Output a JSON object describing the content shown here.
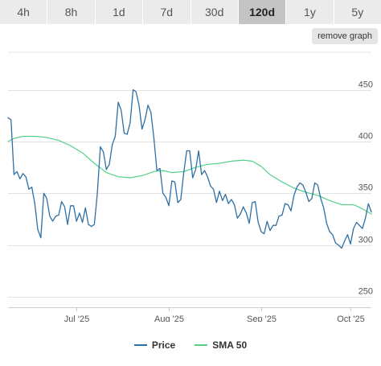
{
  "tabs": [
    {
      "label": "4h",
      "active": false
    },
    {
      "label": "8h",
      "active": false
    },
    {
      "label": "1d",
      "active": false
    },
    {
      "label": "7d",
      "active": false
    },
    {
      "label": "30d",
      "active": false
    },
    {
      "label": "120d",
      "active": true
    },
    {
      "label": "1y",
      "active": false
    },
    {
      "label": "5y",
      "active": false
    }
  ],
  "remove_graph_label": "remove graph",
  "colors": {
    "price": "#2f6fa3",
    "sma": "#54d08a",
    "grid": "#e3e3e3",
    "axis_text": "#555555"
  },
  "chart_data": {
    "type": "line",
    "title": "",
    "xlabel": "",
    "ylabel": "",
    "ylim": [
      240,
      490
    ],
    "xlim": [
      "2025-06-08",
      "2025-10-08"
    ],
    "yticks": [
      250,
      300,
      350,
      400,
      450
    ],
    "xticks": [
      {
        "date": "2025-07-01",
        "label": "Jul '25"
      },
      {
        "date": "2025-08-01",
        "label": "Aug '25"
      },
      {
        "date": "2025-09-01",
        "label": "Sep '25"
      },
      {
        "date": "2025-10-01",
        "label": "Oct '25"
      }
    ],
    "grid": true,
    "legend_position": "bottom",
    "series": [
      {
        "name": "Price",
        "color": "#2f6fa3",
        "points": [
          [
            "2025-06-08",
            423
          ],
          [
            "2025-06-09",
            421
          ],
          [
            "2025-06-10",
            368
          ],
          [
            "2025-06-11",
            371
          ],
          [
            "2025-06-12",
            364
          ],
          [
            "2025-06-13",
            369
          ],
          [
            "2025-06-14",
            366
          ],
          [
            "2025-06-15",
            354
          ],
          [
            "2025-06-16",
            356
          ],
          [
            "2025-06-17",
            340
          ],
          [
            "2025-06-18",
            315
          ],
          [
            "2025-06-19",
            307
          ],
          [
            "2025-06-20",
            350
          ],
          [
            "2025-06-21",
            345
          ],
          [
            "2025-06-22",
            328
          ],
          [
            "2025-06-23",
            323
          ],
          [
            "2025-06-24",
            328
          ],
          [
            "2025-06-25",
            329
          ],
          [
            "2025-06-26",
            342
          ],
          [
            "2025-06-27",
            337
          ],
          [
            "2025-06-28",
            320
          ],
          [
            "2025-06-29",
            338
          ],
          [
            "2025-06-30",
            338
          ],
          [
            "2025-07-01",
            323
          ],
          [
            "2025-07-02",
            331
          ],
          [
            "2025-07-03",
            322
          ],
          [
            "2025-07-04",
            336
          ],
          [
            "2025-07-05",
            320
          ],
          [
            "2025-07-06",
            318
          ],
          [
            "2025-07-07",
            320
          ],
          [
            "2025-07-08",
            350
          ],
          [
            "2025-07-09",
            395
          ],
          [
            "2025-07-10",
            390
          ],
          [
            "2025-07-11",
            373
          ],
          [
            "2025-07-12",
            378
          ],
          [
            "2025-07-13",
            397
          ],
          [
            "2025-07-14",
            405
          ],
          [
            "2025-07-15",
            438
          ],
          [
            "2025-07-16",
            430
          ],
          [
            "2025-07-17",
            408
          ],
          [
            "2025-07-18",
            407
          ],
          [
            "2025-07-19",
            418
          ],
          [
            "2025-07-20",
            450
          ],
          [
            "2025-07-21",
            448
          ],
          [
            "2025-07-22",
            435
          ],
          [
            "2025-07-23",
            412
          ],
          [
            "2025-07-24",
            421
          ],
          [
            "2025-07-25",
            435
          ],
          [
            "2025-07-26",
            428
          ],
          [
            "2025-07-27",
            403
          ],
          [
            "2025-07-28",
            372
          ],
          [
            "2025-07-29",
            374
          ],
          [
            "2025-07-30",
            350
          ],
          [
            "2025-07-31",
            346
          ],
          [
            "2025-08-01",
            338
          ],
          [
            "2025-08-02",
            362
          ],
          [
            "2025-08-03",
            361
          ],
          [
            "2025-08-04",
            341
          ],
          [
            "2025-08-05",
            344
          ],
          [
            "2025-08-06",
            370
          ],
          [
            "2025-08-07",
            391
          ],
          [
            "2025-08-08",
            391
          ],
          [
            "2025-08-09",
            365
          ],
          [
            "2025-08-10",
            373
          ],
          [
            "2025-08-11",
            391
          ],
          [
            "2025-08-12",
            368
          ],
          [
            "2025-08-13",
            372
          ],
          [
            "2025-08-14",
            366
          ],
          [
            "2025-08-15",
            357
          ],
          [
            "2025-08-16",
            354
          ],
          [
            "2025-08-17",
            341
          ],
          [
            "2025-08-18",
            352
          ],
          [
            "2025-08-19",
            343
          ],
          [
            "2025-08-20",
            349
          ],
          [
            "2025-08-21",
            340
          ],
          [
            "2025-08-22",
            344
          ],
          [
            "2025-08-23",
            339
          ],
          [
            "2025-08-24",
            326
          ],
          [
            "2025-08-25",
            330
          ],
          [
            "2025-08-26",
            337
          ],
          [
            "2025-08-27",
            331
          ],
          [
            "2025-08-28",
            321
          ],
          [
            "2025-08-29",
            341
          ],
          [
            "2025-08-30",
            342
          ],
          [
            "2025-08-31",
            322
          ],
          [
            "2025-09-01",
            313
          ],
          [
            "2025-09-02",
            311
          ],
          [
            "2025-09-03",
            323
          ],
          [
            "2025-09-04",
            314
          ],
          [
            "2025-09-05",
            319
          ],
          [
            "2025-09-06",
            319
          ],
          [
            "2025-09-07",
            328
          ],
          [
            "2025-09-08",
            329
          ],
          [
            "2025-09-09",
            340
          ],
          [
            "2025-09-10",
            339
          ],
          [
            "2025-09-11",
            333
          ],
          [
            "2025-09-12",
            348
          ],
          [
            "2025-09-13",
            356
          ],
          [
            "2025-09-14",
            360
          ],
          [
            "2025-09-15",
            358
          ],
          [
            "2025-09-16",
            351
          ],
          [
            "2025-09-17",
            342
          ],
          [
            "2025-09-18",
            345
          ],
          [
            "2025-09-19",
            360
          ],
          [
            "2025-09-20",
            358
          ],
          [
            "2025-09-21",
            345
          ],
          [
            "2025-09-22",
            336
          ],
          [
            "2025-09-23",
            321
          ],
          [
            "2025-09-24",
            313
          ],
          [
            "2025-09-25",
            310
          ],
          [
            "2025-09-26",
            302
          ],
          [
            "2025-09-27",
            300
          ],
          [
            "2025-09-28",
            297
          ],
          [
            "2025-09-29",
            304
          ],
          [
            "2025-09-30",
            310
          ],
          [
            "2025-10-01",
            301
          ],
          [
            "2025-10-02",
            316
          ],
          [
            "2025-10-03",
            322
          ],
          [
            "2025-10-04",
            319
          ],
          [
            "2025-10-05",
            316
          ],
          [
            "2025-10-06",
            326
          ],
          [
            "2025-10-07",
            340
          ],
          [
            "2025-10-08",
            332
          ]
        ]
      },
      {
        "name": "SMA 50",
        "color": "#54d08a",
        "points": [
          [
            "2025-06-08",
            400
          ],
          [
            "2025-06-10",
            403
          ],
          [
            "2025-06-13",
            405
          ],
          [
            "2025-06-17",
            405
          ],
          [
            "2025-06-21",
            404
          ],
          [
            "2025-06-25",
            401
          ],
          [
            "2025-06-29",
            396
          ],
          [
            "2025-07-03",
            389
          ],
          [
            "2025-07-07",
            379
          ],
          [
            "2025-07-11",
            370
          ],
          [
            "2025-07-15",
            366
          ],
          [
            "2025-07-19",
            365
          ],
          [
            "2025-07-23",
            367
          ],
          [
            "2025-07-27",
            371
          ],
          [
            "2025-07-30",
            372
          ],
          [
            "2025-08-02",
            370
          ],
          [
            "2025-08-06",
            371
          ],
          [
            "2025-08-10",
            375
          ],
          [
            "2025-08-14",
            378
          ],
          [
            "2025-08-18",
            379
          ],
          [
            "2025-08-22",
            381
          ],
          [
            "2025-08-26",
            382
          ],
          [
            "2025-08-29",
            381
          ],
          [
            "2025-09-01",
            376
          ],
          [
            "2025-09-04",
            368
          ],
          [
            "2025-09-08",
            361
          ],
          [
            "2025-09-12",
            355
          ],
          [
            "2025-09-16",
            351
          ],
          [
            "2025-09-20",
            348
          ],
          [
            "2025-09-24",
            343
          ],
          [
            "2025-09-28",
            339
          ],
          [
            "2025-10-02",
            339
          ],
          [
            "2025-10-05",
            335
          ],
          [
            "2025-10-08",
            330
          ]
        ]
      }
    ]
  }
}
